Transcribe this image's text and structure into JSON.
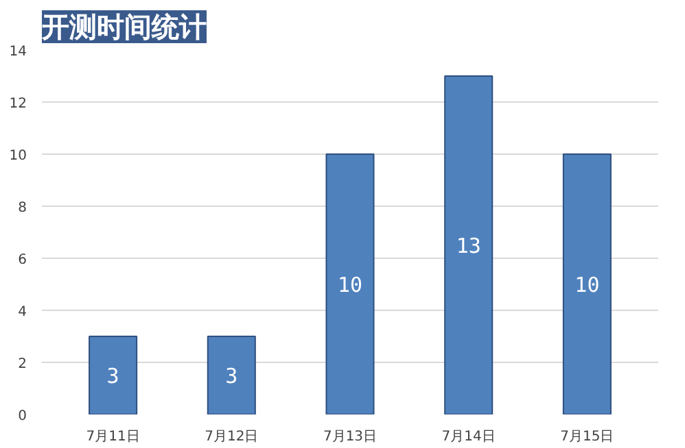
{
  "chart_data": {
    "type": "bar",
    "title": "开测时间统计",
    "categories": [
      "7月11日",
      "7月12日",
      "7月13日",
      "7月14日",
      "7月15日"
    ],
    "values": [
      3,
      3,
      10,
      13,
      10
    ],
    "color": "#4f81bd",
    "ylim": [
      0,
      14
    ],
    "yticks": [
      0,
      2,
      4,
      6,
      8,
      10,
      12,
      14
    ],
    "grid": "y",
    "data_labels": true
  }
}
